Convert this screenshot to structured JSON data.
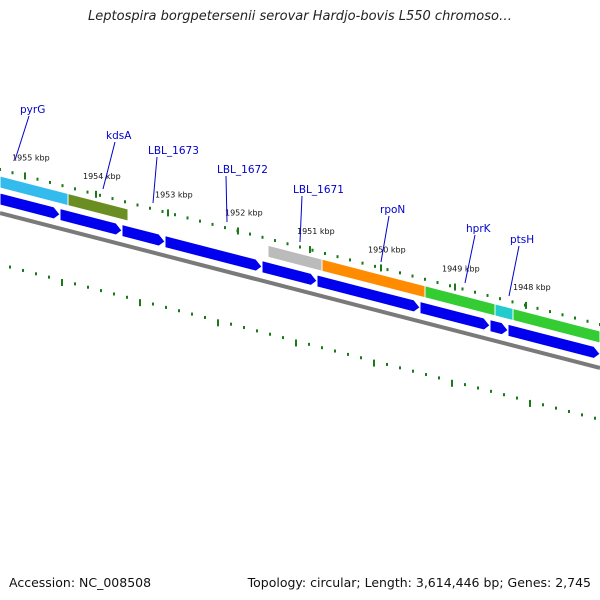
{
  "title": "Leptospira borgpetersenii serovar Hardjo-bovis L550 chromoso…",
  "footer": {
    "accession": "Accession: NC_008508",
    "topology": "Topology: circular; Length: 3,614,446 bp; Genes: 2,745"
  },
  "colors": {
    "cds_blue": "#0000ee",
    "backbone": "#7a7a7a",
    "tick_green": "#1a7a1a",
    "label_blue": "#0000cc"
  },
  "scale_ticks": [
    {
      "label": "1955 kbp"
    },
    {
      "label": "1954 kbp"
    },
    {
      "label": "1953 kbp"
    },
    {
      "label": "1952 kbp"
    },
    {
      "label": "1951 kbp"
    },
    {
      "label": "1950 kbp"
    },
    {
      "label": "1949 kbp"
    },
    {
      "label": "1948 kbp"
    }
  ],
  "genes": [
    {
      "name": "pyrG",
      "color": "#33bbee"
    },
    {
      "name": "kdsA",
      "color": "#6b8e23"
    },
    {
      "name": "LBL_1673",
      "color": "#bbbbbb"
    },
    {
      "name": "LBL_1672",
      "color": "#bbbbbb"
    },
    {
      "name": "LBL_1671",
      "color": "#bbbbbb"
    },
    {
      "name": "rpoN",
      "color": "#ff8c00"
    },
    {
      "name": "hprK",
      "color": "#33cc33"
    },
    {
      "name": "ptsH",
      "color": "#22cccc"
    }
  ]
}
